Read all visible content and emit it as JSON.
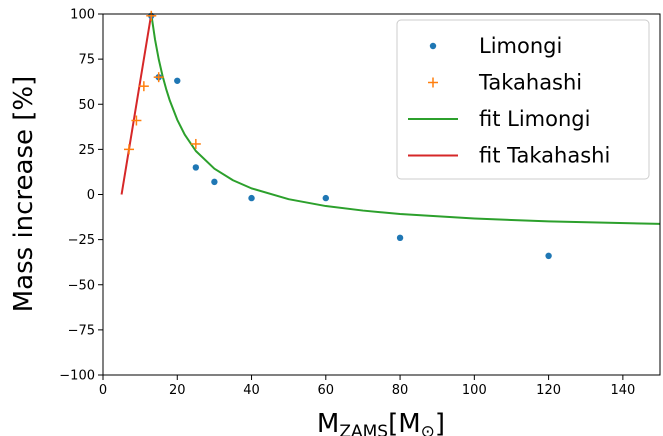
{
  "chart_data": {
    "type": "scatter",
    "xlabel": "M",
    "xlabel_sub": "ZAMS",
    "xlabel_unit": "[M",
    "xlabel_unit_sub": "⊙",
    "xlabel_close": "]",
    "ylabel": "Mass increase [%]",
    "xlim": [
      0,
      150
    ],
    "ylim": [
      -100,
      100
    ],
    "xticks": [
      0,
      20,
      40,
      60,
      80,
      100,
      120,
      140
    ],
    "yticks": [
      -100,
      -75,
      -50,
      -25,
      0,
      25,
      50,
      75,
      100
    ],
    "grid": false,
    "legend_position": "top-right",
    "series": [
      {
        "name": "Limongi",
        "kind": "points",
        "marker": "dot",
        "color": "#1f77b4",
        "x": [
          13,
          15,
          20,
          25,
          30,
          40,
          60,
          80,
          120
        ],
        "y": [
          99,
          65,
          63,
          15,
          7,
          -2,
          -2,
          -24,
          -34
        ]
      },
      {
        "name": "Takahashi",
        "kind": "points",
        "marker": "plus",
        "color": "#ff7f0e",
        "x": [
          7,
          9,
          11,
          13,
          15,
          25
        ],
        "y": [
          25,
          41,
          60,
          99,
          65,
          28
        ]
      },
      {
        "name": "fit Limongi",
        "kind": "line",
        "color": "#2ca02c",
        "x": [
          13,
          14,
          15,
          16,
          17,
          18,
          20,
          22,
          25,
          30,
          35,
          40,
          50,
          60,
          70,
          80,
          100,
          120,
          150
        ],
        "y": [
          100,
          86,
          75,
          66,
          58.5,
          52,
          41.4,
          33.2,
          24.1,
          14.3,
          7.9,
          3.4,
          -2.6,
          -6.4,
          -8.9,
          -10.8,
          -13.3,
          -14.9,
          -16.3
        ]
      },
      {
        "name": "fit Takahashi",
        "kind": "line",
        "color": "#d62728",
        "x": [
          5,
          13
        ],
        "y": [
          0,
          100
        ]
      }
    ]
  }
}
